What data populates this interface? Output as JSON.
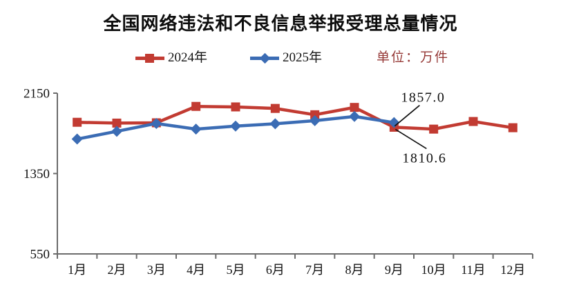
{
  "title": "全国网络违法和不良信息举报受理总量情况",
  "legend": {
    "series_2024_label": "2024年",
    "series_2025_label": "2025年",
    "unit_label": "单位：万件"
  },
  "colors": {
    "series_2024": "#c23b32",
    "series_2025": "#3b6cb4",
    "unit_text": "#953735",
    "axis": "#6b6b6b",
    "text": "#111111"
  },
  "chart_data": {
    "type": "line",
    "title": "全国网络违法和不良信息举报受理总量情况",
    "unit": "万件",
    "categories": [
      "1月",
      "2月",
      "3月",
      "4月",
      "5月",
      "6月",
      "7月",
      "8月",
      "9月",
      "10月",
      "11月",
      "12月"
    ],
    "series": [
      {
        "name": "2024年",
        "color": "#c23b32",
        "marker": "square",
        "values": [
          1860,
          1852,
          1855,
          2018,
          2013,
          1998,
          1935,
          2008,
          1810.6,
          1792,
          1868,
          1806
        ]
      },
      {
        "name": "2025年",
        "color": "#3b6cb4",
        "marker": "diamond",
        "values": [
          1693,
          1770,
          1848,
          1792,
          1822,
          1845,
          1876,
          1918,
          1857.0
        ]
      }
    ],
    "ylim": [
      550,
      2150
    ],
    "yticks": [
      550,
      1350,
      2150
    ],
    "xlabel": "",
    "ylabel": "",
    "grid": false,
    "legend_position": "top",
    "annotations": [
      {
        "text": "1857.0",
        "series_index": 1,
        "point_index": 8,
        "value": 1857.0,
        "placement": "above"
      },
      {
        "text": "1810.6",
        "series_index": 0,
        "point_index": 8,
        "value": 1810.6,
        "placement": "below"
      }
    ]
  }
}
